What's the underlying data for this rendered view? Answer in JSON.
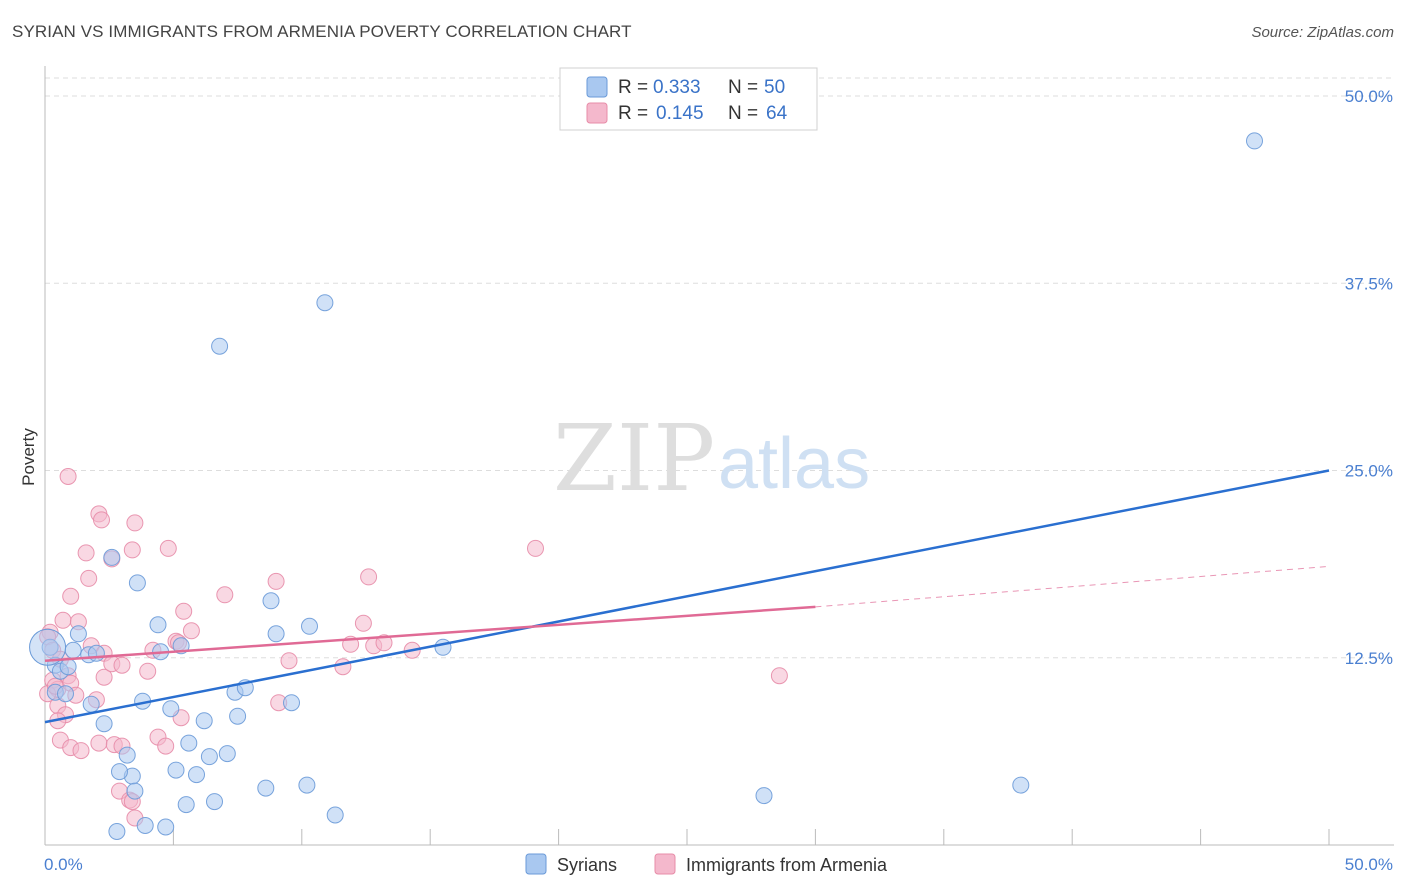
{
  "title": "SYRIAN VS IMMIGRANTS FROM ARMENIA POVERTY CORRELATION CHART",
  "source": "Source: ZipAtlas.com",
  "watermark": {
    "zip": "ZIP",
    "atlas": "atlas"
  },
  "colors": {
    "syrians_fill": "#a9c8f0",
    "syrians_stroke": "#6a9ad8",
    "syrians_line": "#2a6fd0",
    "armenia_fill": "#f4b8cc",
    "armenia_stroke": "#e78ca8",
    "armenia_line": "#e06a95",
    "grid": "#dddddd",
    "tick_label": "#4a7fd0"
  },
  "legend": {
    "rows": [
      {
        "r_label": "R = ",
        "r_value": "0.333",
        "n_label": "N = ",
        "n_value": "50"
      },
      {
        "r_label": "R = ",
        "r_value": "0.145",
        "n_label": "N = ",
        "n_value": "64"
      }
    ]
  },
  "bottom_legend": [
    "Syrians",
    "Immigrants from Armenia"
  ],
  "chart_data": {
    "type": "scatter",
    "title": "SYRIAN VS IMMIGRANTS FROM ARMENIA POVERTY CORRELATION CHART",
    "xlabel": "",
    "ylabel": "Poverty",
    "xlim": [
      0,
      50
    ],
    "ylim": [
      0,
      50
    ],
    "x_tick_labels": [
      "0.0%",
      "50.0%"
    ],
    "y_ticks": [
      12.5,
      25.0,
      37.5,
      50.0
    ],
    "y_tick_labels": [
      "12.5%",
      "25.0%",
      "37.5%",
      "50.0%"
    ],
    "grid": "horizontal dashed",
    "legend_position": "top-center",
    "series": [
      {
        "name": "Syrians",
        "r": 0.333,
        "n": 50,
        "trend": {
          "x": [
            0,
            50
          ],
          "y": [
            8.2,
            25.0
          ],
          "dashed_after": null
        },
        "points": [
          [
            47.1,
            47.0
          ],
          [
            10.9,
            36.2
          ],
          [
            6.8,
            33.3
          ],
          [
            1.3,
            14.1
          ],
          [
            3.6,
            17.5
          ],
          [
            4.4,
            14.7
          ],
          [
            0.4,
            12.0
          ],
          [
            0.6,
            11.6
          ],
          [
            0.4,
            10.2
          ],
          [
            0.8,
            10.1
          ],
          [
            1.1,
            13.0
          ],
          [
            1.7,
            12.7
          ],
          [
            2.0,
            12.8
          ],
          [
            2.6,
            19.2
          ],
          [
            0.2,
            13.2
          ],
          [
            0.9,
            11.9
          ],
          [
            2.3,
            8.1
          ],
          [
            1.8,
            9.4
          ],
          [
            3.8,
            9.6
          ],
          [
            4.9,
            9.1
          ],
          [
            5.3,
            13.3
          ],
          [
            4.5,
            12.9
          ],
          [
            7.4,
            10.2
          ],
          [
            7.8,
            10.5
          ],
          [
            9.0,
            14.1
          ],
          [
            8.8,
            16.3
          ],
          [
            10.3,
            14.6
          ],
          [
            9.6,
            9.5
          ],
          [
            7.5,
            8.6
          ],
          [
            6.2,
            8.3
          ],
          [
            5.6,
            6.8
          ],
          [
            3.2,
            6.0
          ],
          [
            6.4,
            5.9
          ],
          [
            7.1,
            6.1
          ],
          [
            5.1,
            5.0
          ],
          [
            5.9,
            4.7
          ],
          [
            3.4,
            4.6
          ],
          [
            2.9,
            4.9
          ],
          [
            3.5,
            3.6
          ],
          [
            8.6,
            3.8
          ],
          [
            10.2,
            4.0
          ],
          [
            5.5,
            2.7
          ],
          [
            6.6,
            2.9
          ],
          [
            11.3,
            2.0
          ],
          [
            3.9,
            1.3
          ],
          [
            4.7,
            1.2
          ],
          [
            2.8,
            0.9
          ],
          [
            28.0,
            3.3
          ],
          [
            38.0,
            4.0
          ],
          [
            15.5,
            13.2
          ]
        ]
      },
      {
        "name": "Immigrants from Armenia",
        "r": 0.145,
        "n": 64,
        "trend": {
          "x": [
            0,
            30,
            50
          ],
          "y": [
            12.3,
            15.9,
            18.6
          ],
          "dashed_after": 30
        },
        "points": [
          [
            0.9,
            24.6
          ],
          [
            2.1,
            22.1
          ],
          [
            2.2,
            21.7
          ],
          [
            3.5,
            21.5
          ],
          [
            1.6,
            19.5
          ],
          [
            2.6,
            19.1
          ],
          [
            3.4,
            19.7
          ],
          [
            4.8,
            19.8
          ],
          [
            19.1,
            19.8
          ],
          [
            1.7,
            17.8
          ],
          [
            1.0,
            16.6
          ],
          [
            7.0,
            16.7
          ],
          [
            9.0,
            17.6
          ],
          [
            12.6,
            17.9
          ],
          [
            5.4,
            15.6
          ],
          [
            0.7,
            15.0
          ],
          [
            1.3,
            14.9
          ],
          [
            0.2,
            14.2
          ],
          [
            5.7,
            14.3
          ],
          [
            12.4,
            14.8
          ],
          [
            1.8,
            13.3
          ],
          [
            2.3,
            12.8
          ],
          [
            4.2,
            13.0
          ],
          [
            5.1,
            13.6
          ],
          [
            5.2,
            13.5
          ],
          [
            11.9,
            13.4
          ],
          [
            12.8,
            13.3
          ],
          [
            13.2,
            13.5
          ],
          [
            14.3,
            13.0
          ],
          [
            0.3,
            11.0
          ],
          [
            0.5,
            10.4
          ],
          [
            0.9,
            11.3
          ],
          [
            1.0,
            10.8
          ],
          [
            2.3,
            11.2
          ],
          [
            2.6,
            12.1
          ],
          [
            3.0,
            12.0
          ],
          [
            4.0,
            11.6
          ],
          [
            9.5,
            12.3
          ],
          [
            11.6,
            11.9
          ],
          [
            28.6,
            11.3
          ],
          [
            0.1,
            10.1
          ],
          [
            0.5,
            9.3
          ],
          [
            0.8,
            8.7
          ],
          [
            1.2,
            10.0
          ],
          [
            2.0,
            9.7
          ],
          [
            5.3,
            8.5
          ],
          [
            9.1,
            9.5
          ],
          [
            0.5,
            8.3
          ],
          [
            0.6,
            7.0
          ],
          [
            1.0,
            6.5
          ],
          [
            1.4,
            6.3
          ],
          [
            2.1,
            6.8
          ],
          [
            2.7,
            6.7
          ],
          [
            3.0,
            6.6
          ],
          [
            4.4,
            7.2
          ],
          [
            4.7,
            6.6
          ],
          [
            0.1,
            13.9
          ],
          [
            0.3,
            13.0
          ],
          [
            0.6,
            12.4
          ],
          [
            2.9,
            3.6
          ],
          [
            3.3,
            3.0
          ],
          [
            3.4,
            2.9
          ],
          [
            3.5,
            1.8
          ],
          [
            0.4,
            10.6
          ]
        ]
      }
    ]
  }
}
